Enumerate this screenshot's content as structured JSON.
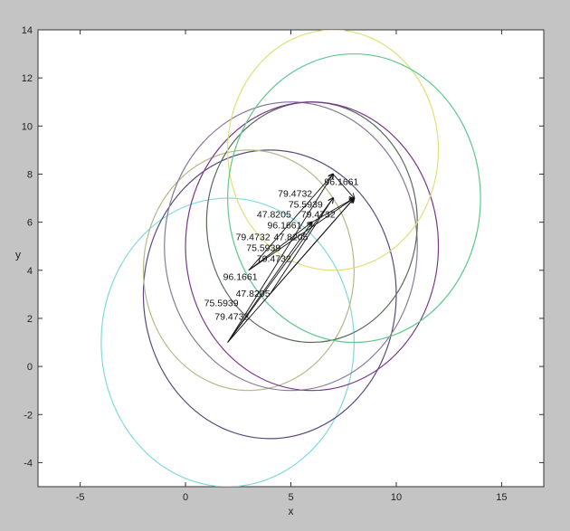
{
  "chart_data": {
    "type": "line",
    "title": "",
    "xlabel": "x",
    "ylabel": "y",
    "xlim": [
      -7,
      17
    ],
    "ylim": [
      -5,
      14
    ],
    "xticks": [
      -5,
      0,
      5,
      10,
      15
    ],
    "yticks": [
      -4,
      -2,
      0,
      2,
      4,
      6,
      8,
      10,
      12,
      14
    ],
    "grid": false,
    "legend": "none",
    "series": [
      {
        "values": {
          "cx": 2,
          "cy": 1,
          "r": 6
        },
        "color": "#7fd9dd"
      },
      {
        "values": {
          "cx": 4,
          "cy": 3,
          "r": 6
        },
        "color": "#5a4a7a"
      },
      {
        "values": {
          "cx": 3,
          "cy": 4,
          "r": 5
        },
        "color": "#b8b88a"
      },
      {
        "values": {
          "cx": 5,
          "cy": 5,
          "r": 6
        },
        "color": "#8a7a9a"
      },
      {
        "values": {
          "cx": 6,
          "cy": 6,
          "r": 5
        },
        "color": "#5a6a5a"
      },
      {
        "values": {
          "cx": 6,
          "cy": 5,
          "r": 6
        },
        "color": "#7a3a8a"
      },
      {
        "values": {
          "cx": 7,
          "cy": 9,
          "r": 5
        },
        "color": "#e0e07a"
      },
      {
        "values": {
          "cx": 8,
          "cy": 7,
          "r": 6
        },
        "color": "#5ec98a"
      }
    ],
    "segments": [
      [
        2,
        1,
        7,
        8
      ],
      [
        2,
        1,
        8,
        7
      ],
      [
        2,
        1,
        6,
        6
      ],
      [
        2,
        1,
        7,
        7
      ],
      [
        3,
        4,
        7,
        8
      ],
      [
        3,
        4,
        8,
        7
      ],
      [
        3,
        4,
        6,
        6
      ],
      [
        4,
        3,
        8,
        7
      ],
      [
        4,
        3,
        7,
        7
      ],
      [
        5,
        4,
        8,
        7
      ],
      [
        6,
        6,
        8,
        7
      ],
      [
        7,
        8,
        8,
        7
      ]
    ],
    "data_labels": [
      {
        "text": "96.1661",
        "x": 7.4,
        "y": 7.55
      },
      {
        "text": "79.4732",
        "x": 5.2,
        "y": 7.05
      },
      {
        "text": "75.5939",
        "x": 5.7,
        "y": 6.6
      },
      {
        "text": "47.8205",
        "x": 4.2,
        "y": 6.2
      },
      {
        "text": "79.4732",
        "x": 6.3,
        "y": 6.2
      },
      {
        "text": "96.1661",
        "x": 4.7,
        "y": 5.75
      },
      {
        "text": "79.4732",
        "x": 3.2,
        "y": 5.25
      },
      {
        "text": "47.8205",
        "x": 5.0,
        "y": 5.25
      },
      {
        "text": "75.5939",
        "x": 3.7,
        "y": 4.8
      },
      {
        "text": "79.4732",
        "x": 4.2,
        "y": 4.35
      },
      {
        "text": "96.1661",
        "x": 2.6,
        "y": 3.6
      },
      {
        "text": "47.8205",
        "x": 3.2,
        "y": 2.9
      },
      {
        "text": "75.5939",
        "x": 1.7,
        "y": 2.5
      },
      {
        "text": "79.4732",
        "x": 2.2,
        "y": 1.95
      }
    ]
  }
}
